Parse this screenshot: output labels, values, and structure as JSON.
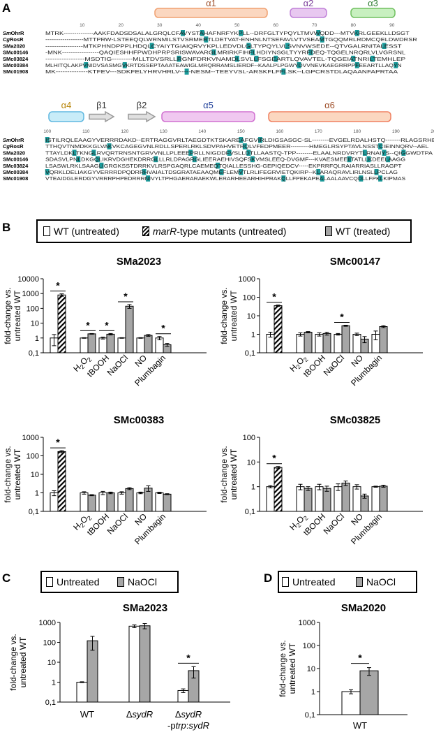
{
  "panels": {
    "a": "A",
    "b": "B",
    "c": "C",
    "d": "D"
  },
  "alignment": {
    "structure_top": [
      {
        "label": "α1",
        "kind": "helix",
        "color": "#fbd7c0",
        "stroke": "#f0a070",
        "text_color": "#a0522d"
      },
      {
        "label": "α2",
        "kind": "helix",
        "color": "#e8c8f0",
        "stroke": "#c080d8",
        "text_color": "#7a3d99"
      },
      {
        "label": "α3",
        "kind": "helix",
        "color": "#c8f0c0",
        "stroke": "#70c060",
        "text_color": "#2e7d32"
      }
    ],
    "structure_bottom": [
      {
        "label": "α4",
        "kind": "helix",
        "color": "#c8ecf8",
        "stroke": "#60b8e0",
        "text_color": "#b8860b"
      },
      {
        "label": "β1",
        "kind": "strand",
        "color": "#e0e0e0",
        "stroke": "#999999",
        "text_color": "#333333"
      },
      {
        "label": "β2",
        "kind": "strand",
        "color": "#e0e0e0",
        "stroke": "#999999",
        "text_color": "#333333"
      },
      {
        "label": "α5",
        "kind": "helix",
        "color": "#f0c8f0",
        "stroke": "#d070d0",
        "text_color": "#1f3f99"
      },
      {
        "label": "α6",
        "kind": "helix",
        "color": "#fbd7c0",
        "stroke": "#f08060",
        "text_color": "#a0522d"
      }
    ],
    "ruler_top": [
      "10",
      "20",
      "30",
      "40",
      "50",
      "60",
      "70",
      "80",
      "90"
    ],
    "ruler_bottom": [
      "100",
      "110",
      "120",
      "130",
      "140",
      "150",
      "160",
      "170",
      "180",
      "190",
      "200"
    ],
    "names": [
      {
        "italic": "Sm",
        "rest": "OhrR"
      },
      {
        "italic": "Cg",
        "rest": "RosR"
      },
      {
        "italic": "",
        "rest": "SMa2020"
      },
      {
        "italic": "",
        "rest": "SMc00146"
      },
      {
        "italic": "",
        "rest": "SMc03824"
      },
      {
        "italic": "",
        "rest": "SMc00384"
      },
      {
        "italic": "",
        "rest": "SMc01908"
      }
    ],
    "seq_top": [
      "MTRK--------------AAKFDADSDSALALGRQLCFAVYSTAHAFNRFYKPLL--DRFGLTYPQYLTMVWQDD---MTVKRLGEEKLLDSGT",
      "------------------MTTPRW-LSTEEQQLWRNMILSTVSRMERTLDETVAT-ENHNLNTSEFAVLVTVSEAMTGQQMRLRDMCQELDWDRSR",
      "-----------------MTKPHNDPPPLHDQLCYAIYTGIAIQRVYKPLLEDVDLGLTYPQYLVLSVNVWSEDE--QTVGALRNITALESST",
      "-MNK-----------------QAQIESHHFPWDHPRPSRISWAVARGLMRIRKFIHFLHDIYNSGLTYYRFDEQ-TQGELNRQRLVLVGRSNL",
      "-----------------MSDTIG---------MLLTDVSRLLRGNFDRKVNAMDLSVLLFSGEARTLQVAVTEL-TQGEIATNRILTEMHLEP",
      "MLHITQLAKPVNIDVSASMGVKRTDSSEPTAAATEAWIGLMRQRRAMSLIERDF--KAALPLPGWYDVVNEVKAEGRRPPFEEARTLLAQYN",
      "MK--------------KTFEV---SDKFELYHRVHRLV-----NESM--TEEYVSL-ARSKFLFFLSK--LGPCRSTDLAQAANFAPRTAA"
    ],
    "seq_bottom": [
      "ISTILRQLEAAGYVERRRDAKD--ERTRAGGVRLTAEGDTKTSKAREAFGVIRLDIGSASGC-SL--------EVGELRDALHSTQ-------RLAGSRHES",
      "TTHQVTNMDKKGLVAKVKCAGEGVNLRDLLSPERLRKLSDVPAHVETRQLVFEDPMEER---------HMEGLRSYPTAVLNSSTCIEINNQRV--AEL",
      "TTAYLDKLTKNGLRVQRTRNSNTGRVVNLLPLEEEPRLLNIGDDFVSLLDTLLAASTQ-TPP--------ELAALNRDVRYTLRNAIYS--QIGGWDTPA",
      "SDASVLPNLDKGQLIKRVDGHEKDRRGLLLRLDPAGRGLIEERAEHIVSQFSKVMSLEEQ-DVGMF---KVAESMEEIITATLLKDEELAAGG",
      "LSASWLRKLSAAGLIGRGKSSTDRRKVLRSPGAQRLCAEMEQTQIALLESSHG-GEPIQEDCV-----EKPRRFQLRAIARRIASLLRAGPT",
      "VQRKLDELIAKGYVERRRDPQDRRHVAIALTDSGRATAEAAQMEFLEMVTLRLIFEGRVIETQKIRP--KLARAQRAVLIRLNSLLPCLAG",
      "VTEAIDGLERDGYVRRRPHPEDRRRNIVYLTPHGAERARAEKWLERARHEEARHIHPRAKQLLFPEKAPEALAALAAVCQDLLFPKLKIPMAS"
    ]
  },
  "legend_b": {
    "wt_untreated": "WT (untreated)",
    "mutant_prefix": "",
    "mutant_italic": "marR",
    "mutant_suffix": "-type mutants (untreated)",
    "wt_treated": "WT (treated)"
  },
  "y_axis_label_line1": "fold-change vs.",
  "y_axis_label_line2": "untreated WT",
  "charts_b": [
    {
      "title": "SMa2023",
      "ylim": [
        0.1,
        10000
      ],
      "ticks": [
        "10000",
        "1000",
        "100",
        "10",
        "1",
        "0,1"
      ],
      "wt": 1.0,
      "wt_err": 0.7,
      "mutant": 800,
      "mutant_err": 150,
      "treatments": [
        "H2O2",
        "tBOOH",
        "NaOCl",
        "NO",
        "Plumbagin"
      ],
      "untreated": [
        1.0,
        1.0,
        1.0,
        1.0,
        1.0
      ],
      "untreated_err": [
        0.05,
        0.15,
        0.05,
        0.05,
        0.25
      ],
      "treated": [
        1.9,
        1.8,
        140,
        1.5,
        0.35
      ],
      "treated_err": [
        0.1,
        0.2,
        40,
        0.2,
        0.08
      ],
      "sig_mutant": true,
      "sig": [
        true,
        true,
        true,
        false,
        true
      ]
    },
    {
      "title": "SMc00147",
      "ylim": [
        0.1,
        1000
      ],
      "ticks": [
        "1000",
        "100",
        "10",
        "1",
        "0,1"
      ],
      "wt": 1.0,
      "wt_err": 0.3,
      "mutant": 35,
      "mutant_err": 3,
      "treatments": [
        "H2O2",
        "tBOOH",
        "NaOCl",
        "NO",
        "Plumbagin"
      ],
      "untreated": [
        1.0,
        1.0,
        1.0,
        1.0,
        1.0
      ],
      "untreated_err": [
        0.2,
        0.2,
        0.1,
        0.15,
        0.5
      ],
      "treated": [
        1.3,
        1.1,
        2.9,
        0.55,
        2.6
      ],
      "treated_err": [
        0.1,
        0.2,
        0.2,
        0.2,
        0.3
      ],
      "sig_mutant": true,
      "sig": [
        false,
        false,
        true,
        false,
        false
      ]
    },
    {
      "title": "SMc00383",
      "ylim": [
        0.1,
        1000
      ],
      "ticks": [
        "1000",
        "100",
        "10",
        "1",
        "0,1"
      ],
      "wt": 1.0,
      "wt_err": 0.3,
      "mutant": 170,
      "mutant_err": 20,
      "treatments": [
        "H2O2",
        "tBOOH",
        "NaOCl",
        "NO",
        "Plumbagin"
      ],
      "untreated": [
        1.0,
        1.0,
        1.0,
        1.0,
        1.0
      ],
      "untreated_err": [
        0.15,
        0.2,
        0.15,
        0.1,
        0.08
      ],
      "treated": [
        0.75,
        1.0,
        1.7,
        1.8,
        0.85
      ],
      "treated_err": [
        0.05,
        0.1,
        0.2,
        0.6,
        0.05
      ],
      "sig_mutant": true,
      "sig": [
        false,
        false,
        false,
        false,
        false
      ]
    },
    {
      "title": "SMc03825",
      "ylim": [
        0.1,
        100
      ],
      "ticks": [
        "100",
        "10",
        "1",
        "0,1"
      ],
      "wt": 1.0,
      "wt_err": 0.1,
      "mutant": 6,
      "mutant_err": 0.6,
      "treatments": [
        "H2O2",
        "tBOOH",
        "NaOCl",
        "NO",
        "Plumbagin"
      ],
      "untreated": [
        1.0,
        1.0,
        1.0,
        1.0,
        1.0
      ],
      "untreated_err": [
        0.25,
        0.25,
        0.3,
        0.2,
        0.05
      ],
      "treated": [
        0.85,
        0.85,
        1.4,
        0.42,
        1.05
      ],
      "treated_err": [
        0.15,
        0.2,
        0.3,
        0.08,
        0.1
      ],
      "sig_mutant": true,
      "sig": [
        false,
        false,
        false,
        false,
        false
      ]
    }
  ],
  "legend_c": {
    "untreated": "Untreated",
    "treated": "NaOCl"
  },
  "chart_c": {
    "title": "SMa2023",
    "ylim": [
      0.1,
      1000
    ],
    "ticks": [
      "1000",
      "100",
      "10",
      "1",
      "0,1"
    ],
    "groups": [
      {
        "label": "WT",
        "italic": "",
        "label2": "",
        "untreated": 1.0,
        "untreated_err": 0.05,
        "treated": 120,
        "treated_err": 80
      },
      {
        "label": "Δ",
        "italic": "sydR",
        "label2": "",
        "untreated": 650,
        "untreated_err": 100,
        "treated": 680,
        "treated_err": 200
      },
      {
        "label": "Δ",
        "italic": "sydR",
        "label2": "-ptrp:sydR",
        "untreated": 0.38,
        "untreated_err": 0.08,
        "treated": 3.8,
        "treated_err": 2.2
      }
    ],
    "sig": [
      false,
      false,
      true
    ]
  },
  "legend_d": {
    "untreated": "Untreated",
    "treated": "NaOCl"
  },
  "chart_d": {
    "title": "SMa2020",
    "ylim": [
      0.1,
      1000
    ],
    "ticks": [
      "1000",
      "100",
      "10",
      "1",
      "0,1"
    ],
    "group": "WT",
    "untreated": 1.0,
    "untreated_err": 0.2,
    "treated": 8,
    "treated_err": 3,
    "sig": true
  },
  "chart_data": [
    {
      "type": "bar",
      "title": "SMa2023",
      "categories": [
        "WT",
        "marR-type mutant",
        "H2O2",
        "tBOOH",
        "NaOCl",
        "NO",
        "Plumbagin"
      ],
      "series": [
        {
          "name": "WT (untreated)",
          "values": [
            1,
            null,
            1,
            1,
            1,
            1,
            1
          ]
        },
        {
          "name": "marR-type mutants (untreated)",
          "values": [
            null,
            800,
            null,
            null,
            null,
            null,
            null
          ]
        },
        {
          "name": "WT (treated)",
          "values": [
            null,
            null,
            1.9,
            1.8,
            140,
            1.5,
            0.35
          ]
        }
      ],
      "ylabel": "fold-change vs. untreated WT",
      "ylim": [
        0.1,
        10000
      ],
      "yscale": "log"
    },
    {
      "type": "bar",
      "title": "SMc00147",
      "categories": [
        "WT",
        "marR-type mutant",
        "H2O2",
        "tBOOH",
        "NaOCl",
        "NO",
        "Plumbagin"
      ],
      "series": [
        {
          "name": "WT (untreated)",
          "values": [
            1,
            null,
            1,
            1,
            1,
            1,
            1
          ]
        },
        {
          "name": "marR-type mutants (untreated)",
          "values": [
            null,
            35,
            null,
            null,
            null,
            null,
            null
          ]
        },
        {
          "name": "WT (treated)",
          "values": [
            null,
            null,
            1.3,
            1.1,
            2.9,
            0.55,
            2.6
          ]
        }
      ],
      "ylabel": "fold-change vs. untreated WT",
      "ylim": [
        0.1,
        1000
      ],
      "yscale": "log"
    },
    {
      "type": "bar",
      "title": "SMc00383",
      "categories": [
        "WT",
        "marR-type mutant",
        "H2O2",
        "tBOOH",
        "NaOCl",
        "NO",
        "Plumbagin"
      ],
      "series": [
        {
          "name": "WT (untreated)",
          "values": [
            1,
            null,
            1,
            1,
            1,
            1,
            1
          ]
        },
        {
          "name": "marR-type mutants (untreated)",
          "values": [
            null,
            170,
            null,
            null,
            null,
            null,
            null
          ]
        },
        {
          "name": "WT (treated)",
          "values": [
            null,
            null,
            0.75,
            1.0,
            1.7,
            1.8,
            0.85
          ]
        }
      ],
      "ylabel": "fold-change vs. untreated WT",
      "ylim": [
        0.1,
        1000
      ],
      "yscale": "log"
    },
    {
      "type": "bar",
      "title": "SMc03825",
      "categories": [
        "WT",
        "marR-type mutant",
        "H2O2",
        "tBOOH",
        "NaOCl",
        "NO",
        "Plumbagin"
      ],
      "series": [
        {
          "name": "WT (untreated)",
          "values": [
            1,
            null,
            1,
            1,
            1,
            1,
            1
          ]
        },
        {
          "name": "marR-type mutants (untreated)",
          "values": [
            null,
            6,
            null,
            null,
            null,
            null,
            null
          ]
        },
        {
          "name": "WT (treated)",
          "values": [
            null,
            null,
            0.85,
            0.85,
            1.4,
            0.42,
            1.05
          ]
        }
      ],
      "ylabel": "fold-change vs. untreated WT",
      "ylim": [
        0.1,
        100
      ],
      "yscale": "log"
    },
    {
      "type": "bar",
      "title": "SMa2023",
      "categories": [
        "WT",
        "ΔsydR",
        "ΔsydR-ptrp:sydR"
      ],
      "series": [
        {
          "name": "Untreated",
          "values": [
            1,
            650,
            0.38
          ]
        },
        {
          "name": "NaOCl",
          "values": [
            120,
            680,
            3.8
          ]
        }
      ],
      "ylabel": "fold-change vs. untreated WT",
      "ylim": [
        0.1,
        1000
      ],
      "yscale": "log"
    },
    {
      "type": "bar",
      "title": "SMa2020",
      "categories": [
        "WT"
      ],
      "series": [
        {
          "name": "Untreated",
          "values": [
            1
          ]
        },
        {
          "name": "NaOCl",
          "values": [
            8
          ]
        }
      ],
      "ylabel": "fold-change vs. untreated WT",
      "ylim": [
        0.1,
        1000
      ],
      "yscale": "log"
    }
  ]
}
